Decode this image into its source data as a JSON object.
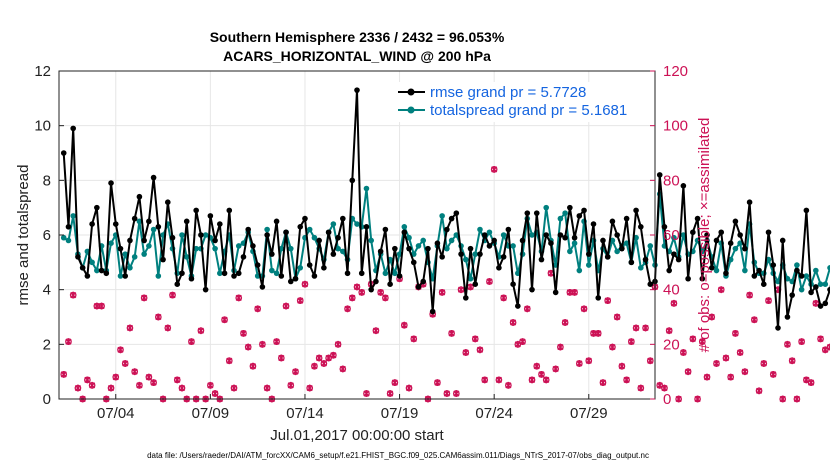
{
  "chart_data": {
    "type": "line",
    "title": "Southern Hemisphere 2336 / 2432 = 96.053%",
    "subtitle": "ACARS_HORIZONTAL_WIND @ 200 hPa",
    "xlabel": "Jul.01,2017 00:00:00 start",
    "ylabel": "rmse and totalspread",
    "ylabel_right": "# of obs: o=possible; ×=assimilated",
    "xlim": [
      1,
      32.5
    ],
    "ylim": [
      0,
      12
    ],
    "ylim_right": [
      0,
      120
    ],
    "x_ticks": [
      {
        "value": 4,
        "label": "07/04"
      },
      {
        "value": 9,
        "label": "07/09"
      },
      {
        "value": 14,
        "label": "07/14"
      },
      {
        "value": 19,
        "label": "07/19"
      },
      {
        "value": 24,
        "label": "07/24"
      },
      {
        "value": 29,
        "label": "07/29"
      }
    ],
    "y_ticks": [
      "0",
      "2",
      "4",
      "6",
      "8",
      "10",
      "12"
    ],
    "y_ticks_right": [
      "0",
      "20",
      "40",
      "60",
      "80",
      "100",
      "120"
    ],
    "grid": true,
    "legend_position": "top-right",
    "colors": {
      "rmse": "#000000",
      "spread": "#00807f",
      "obs": "#cc1155",
      "legend_text": "#1565e0"
    },
    "footer": "data file: /Users/raeder/DAI/ATM_forcXX/CAM6_setup/f.e21.FHIST_BGC.f09_025.CAM6assim.011/Diags_NTrS_2017-07/obs_diag_output.nc",
    "series": [
      {
        "name": "rmse grand pr = 5.7728",
        "key": "rmse",
        "x_start": 1.25,
        "x_step": 0.25,
        "values": [
          9.0,
          6.3,
          9.9,
          5.2,
          4.8,
          4.5,
          6.4,
          7.0,
          4.7,
          4.6,
          7.9,
          6.4,
          5.5,
          4.5,
          5.8,
          6.6,
          7.4,
          5.8,
          6.5,
          8.1,
          6.3,
          5.1,
          7.2,
          5.9,
          4.2,
          4.6,
          6.5,
          4.4,
          6.9,
          6.0,
          4.0,
          6.7,
          5.8,
          6.4,
          4.6,
          6.9,
          4.5,
          4.6,
          5.2,
          6.2,
          5.6,
          4.9,
          4.1,
          6.0,
          5.3,
          6.5,
          4.5,
          6.1,
          4.3,
          4.4,
          6.3,
          6.6,
          4.9,
          4.5,
          5.8,
          4.8,
          6.1,
          5.3,
          5.9,
          6.6,
          4.6,
          8.0,
          11.3,
          4.6,
          6.3,
          4.0,
          4.3,
          5.4,
          6.2,
          4.2,
          5.5,
          4.5,
          6.1,
          5.5,
          5.0,
          4.1,
          4.3,
          5.5,
          3.2,
          5.7,
          5.2,
          6.2,
          6.6,
          6.8,
          5.3,
          3.7,
          5.5,
          4.2,
          5.3,
          6.0,
          5.6,
          5.8,
          4.8,
          5.2,
          6.2,
          4.2,
          3.4,
          5.8,
          6.8,
          4.0,
          6.8,
          5.1,
          6.0,
          5.7,
          3.9,
          6.0,
          5.9,
          7.0,
          5.9,
          6.7,
          6.9,
          5.3,
          6.4,
          3.7,
          5.8,
          5.2,
          6.5,
          6.0,
          5.5,
          6.6,
          5.0,
          6.9,
          6.3,
          5.1,
          4.2,
          4.3,
          8.2,
          6.3,
          4.7,
          5.3,
          5.1,
          7.8,
          4.4,
          6.1,
          6.6,
          4.4,
          6.0,
          4.8,
          5.8,
          6.1,
          4.6,
          5.7,
          6.5,
          6.0,
          5.5,
          7.2,
          4.5,
          4.7,
          4.2,
          6.1,
          4.9,
          2.6,
          5.8,
          3.0,
          3.8,
          4.7,
          4.5,
          6.9,
          3.9,
          4.1,
          3.4,
          3.5,
          4.0,
          4.9,
          3.2,
          4.2,
          4.9,
          5.4,
          2.9,
          2.4,
          3.9,
          4.0,
          4.9,
          8.3,
          3.5,
          6.5,
          5.8,
          5.8,
          3.5,
          5.1,
          5.6,
          5.9,
          5.7,
          6.2,
          7.8,
          4.7,
          7.0,
          6.5,
          6.0,
          6.9,
          8.6,
          7.1,
          6.5,
          6.7
        ]
      },
      {
        "name": "totalspread grand pr = 5.1681",
        "key": "spread",
        "x_start": 1.25,
        "x_step": 0.25,
        "values": [
          5.9,
          5.8,
          6.7,
          5.3,
          4.8,
          5.4,
          5.0,
          4.7,
          5.6,
          4.7,
          5.7,
          6.0,
          4.5,
          5.3,
          4.8,
          5.2,
          6.5,
          5.3,
          5.6,
          6.2,
          4.5,
          6.0,
          6.4,
          5.5,
          4.6,
          6.0,
          5.2,
          4.5,
          5.5,
          5.5,
          6.0,
          5.9,
          5.5,
          4.6,
          5.4,
          6.0,
          4.7,
          5.6,
          5.7,
          6.1,
          5.4,
          4.5,
          4.5,
          6.2,
          4.7,
          4.6,
          5.5,
          6.1,
          5.5,
          4.4,
          4.8,
          5.9,
          6.2,
          5.9,
          5.5,
          5.1,
          6.1,
          6.4,
          5.5,
          5.4,
          5.1,
          6.6,
          6.4,
          6.3,
          7.7,
          5.8,
          4.7,
          5.3,
          4.6,
          5.1,
          4.6,
          5.3,
          6.3,
          5.9,
          5.3,
          5.6,
          5.8,
          5.0,
          4.4,
          5.6,
          6.7,
          5.5,
          5.8,
          6.0,
          5.6,
          5.1,
          4.4,
          5.3,
          6.2,
          5.8,
          6.1,
          5.7,
          5.2,
          6.0,
          5.6,
          5.6,
          4.6,
          5.3,
          6.6,
          6.0,
          6.1,
          5.4,
          7.0,
          5.8,
          4.9,
          6.6,
          6.8,
          5.4,
          5.7,
          4.7,
          6.5,
          4.9,
          5.8,
          4.7,
          5.5,
          5.2,
          5.8,
          5.4,
          5.6,
          5.7,
          5.0,
          5.9,
          4.8,
          5.0,
          5.6,
          4.9,
          7.5,
          5.6,
          5.4,
          5.9,
          5.2,
          6.0,
          5.3,
          5.4,
          5.8,
          5.4,
          5.8,
          5.2,
          4.7,
          5.7,
          4.5,
          5.1,
          5.5,
          5.7,
          4.7,
          6.4,
          5.0,
          4.6,
          4.6,
          5.1,
          4.6,
          4.3,
          4.9,
          4.4,
          4.3,
          4.9,
          4.0,
          4.5,
          4.2,
          4.7,
          4.2,
          4.2,
          4.8,
          4.3,
          4.6,
          4.7,
          4.7,
          4.6,
          4.6,
          4.3,
          4.5,
          4.5,
          4.6,
          4.8,
          5.0,
          4.8,
          5.3,
          5.5,
          5.0,
          5.8,
          5.9,
          5.1,
          5.4,
          5.2,
          6.4,
          5.8,
          5.8,
          5.3,
          6.3,
          5.3,
          6.6,
          6.1,
          6.1,
          4.6
        ]
      },
      {
        "name": "# of obs possible",
        "key": "obs_possible",
        "marker": "circle",
        "x_start": 1.25,
        "x_step": 0.25,
        "values": [
          9,
          21,
          38,
          4,
          0,
          7,
          5,
          34,
          34,
          0,
          4,
          8,
          18,
          13,
          26,
          10,
          5,
          37,
          8,
          6,
          30,
          0,
          26,
          38,
          7,
          4,
          0,
          21,
          0,
          25,
          0,
          5,
          2,
          0,
          29,
          14,
          4,
          37,
          24,
          19,
          12,
          33,
          20,
          4,
          0,
          21,
          15,
          34,
          5,
          10,
          36,
          42,
          4,
          12,
          15,
          13,
          15,
          16,
          20,
          11,
          33,
          37,
          41,
          39,
          2,
          42,
          25,
          39,
          37,
          2,
          6,
          44,
          27,
          4,
          22,
          41,
          42,
          0,
          31,
          6,
          39,
          2,
          24,
          2,
          40,
          17,
          41,
          22,
          18,
          7,
          43,
          84,
          7,
          37,
          5,
          28,
          20,
          21,
          33,
          7,
          12,
          9,
          7,
          46,
          11,
          19,
          28,
          39,
          39,
          13,
          33,
          14,
          24,
          24,
          6,
          36,
          19,
          30,
          12,
          7,
          21,
          26,
          4,
          26,
          14,
          41,
          5,
          4,
          25,
          35,
          0,
          17,
          10,
          22,
          0,
          21,
          8,
          30,
          13,
          40,
          15,
          8,
          24,
          17,
          10,
          38,
          29,
          3,
          13,
          36,
          9,
          40,
          0,
          20,
          14,
          0,
          21,
          7,
          6,
          35,
          22,
          18,
          19,
          26,
          6,
          13,
          36,
          3,
          7,
          24,
          42,
          10,
          22,
          40,
          20,
          28,
          4,
          44,
          28,
          1,
          33,
          0,
          7,
          35,
          39,
          17,
          27,
          21,
          20,
          20,
          0,
          0,
          15,
          22
        ]
      },
      {
        "name": "# of obs assimilated",
        "key": "obs_assim",
        "marker": "x",
        "x_start": 1.25,
        "x_step": 0.25,
        "values": [
          9,
          21,
          38,
          4,
          0,
          7,
          5,
          34,
          34,
          0,
          4,
          8,
          18,
          13,
          26,
          10,
          5,
          37,
          8,
          6,
          30,
          0,
          26,
          38,
          7,
          4,
          0,
          21,
          0,
          25,
          0,
          5,
          2,
          0,
          29,
          14,
          4,
          37,
          24,
          19,
          12,
          33,
          20,
          4,
          0,
          21,
          15,
          34,
          5,
          10,
          36,
          42,
          4,
          12,
          15,
          13,
          15,
          16,
          20,
          11,
          33,
          37,
          41,
          39,
          2,
          42,
          25,
          39,
          37,
          2,
          6,
          44,
          27,
          4,
          22,
          41,
          42,
          0,
          31,
          6,
          39,
          2,
          24,
          2,
          40,
          17,
          41,
          22,
          18,
          7,
          43,
          84,
          7,
          37,
          5,
          28,
          20,
          21,
          33,
          7,
          12,
          9,
          7,
          46,
          11,
          19,
          28,
          39,
          39,
          13,
          33,
          14,
          24,
          24,
          6,
          36,
          19,
          30,
          12,
          7,
          21,
          26,
          4,
          26,
          14,
          41,
          5,
          4,
          25,
          35,
          0,
          17,
          10,
          22,
          0,
          21,
          8,
          30,
          13,
          40,
          15,
          8,
          24,
          17,
          10,
          38,
          29,
          3,
          13,
          36,
          9,
          40,
          0,
          20,
          14,
          0,
          21,
          7,
          6,
          35,
          22,
          18,
          19,
          26,
          6,
          13,
          36,
          3,
          7,
          24,
          42,
          10,
          22,
          40,
          20,
          28,
          4,
          44,
          28,
          1,
          33,
          0,
          7,
          35,
          39,
          17,
          27,
          21,
          20,
          20,
          0,
          0,
          15,
          22
        ]
      }
    ]
  }
}
